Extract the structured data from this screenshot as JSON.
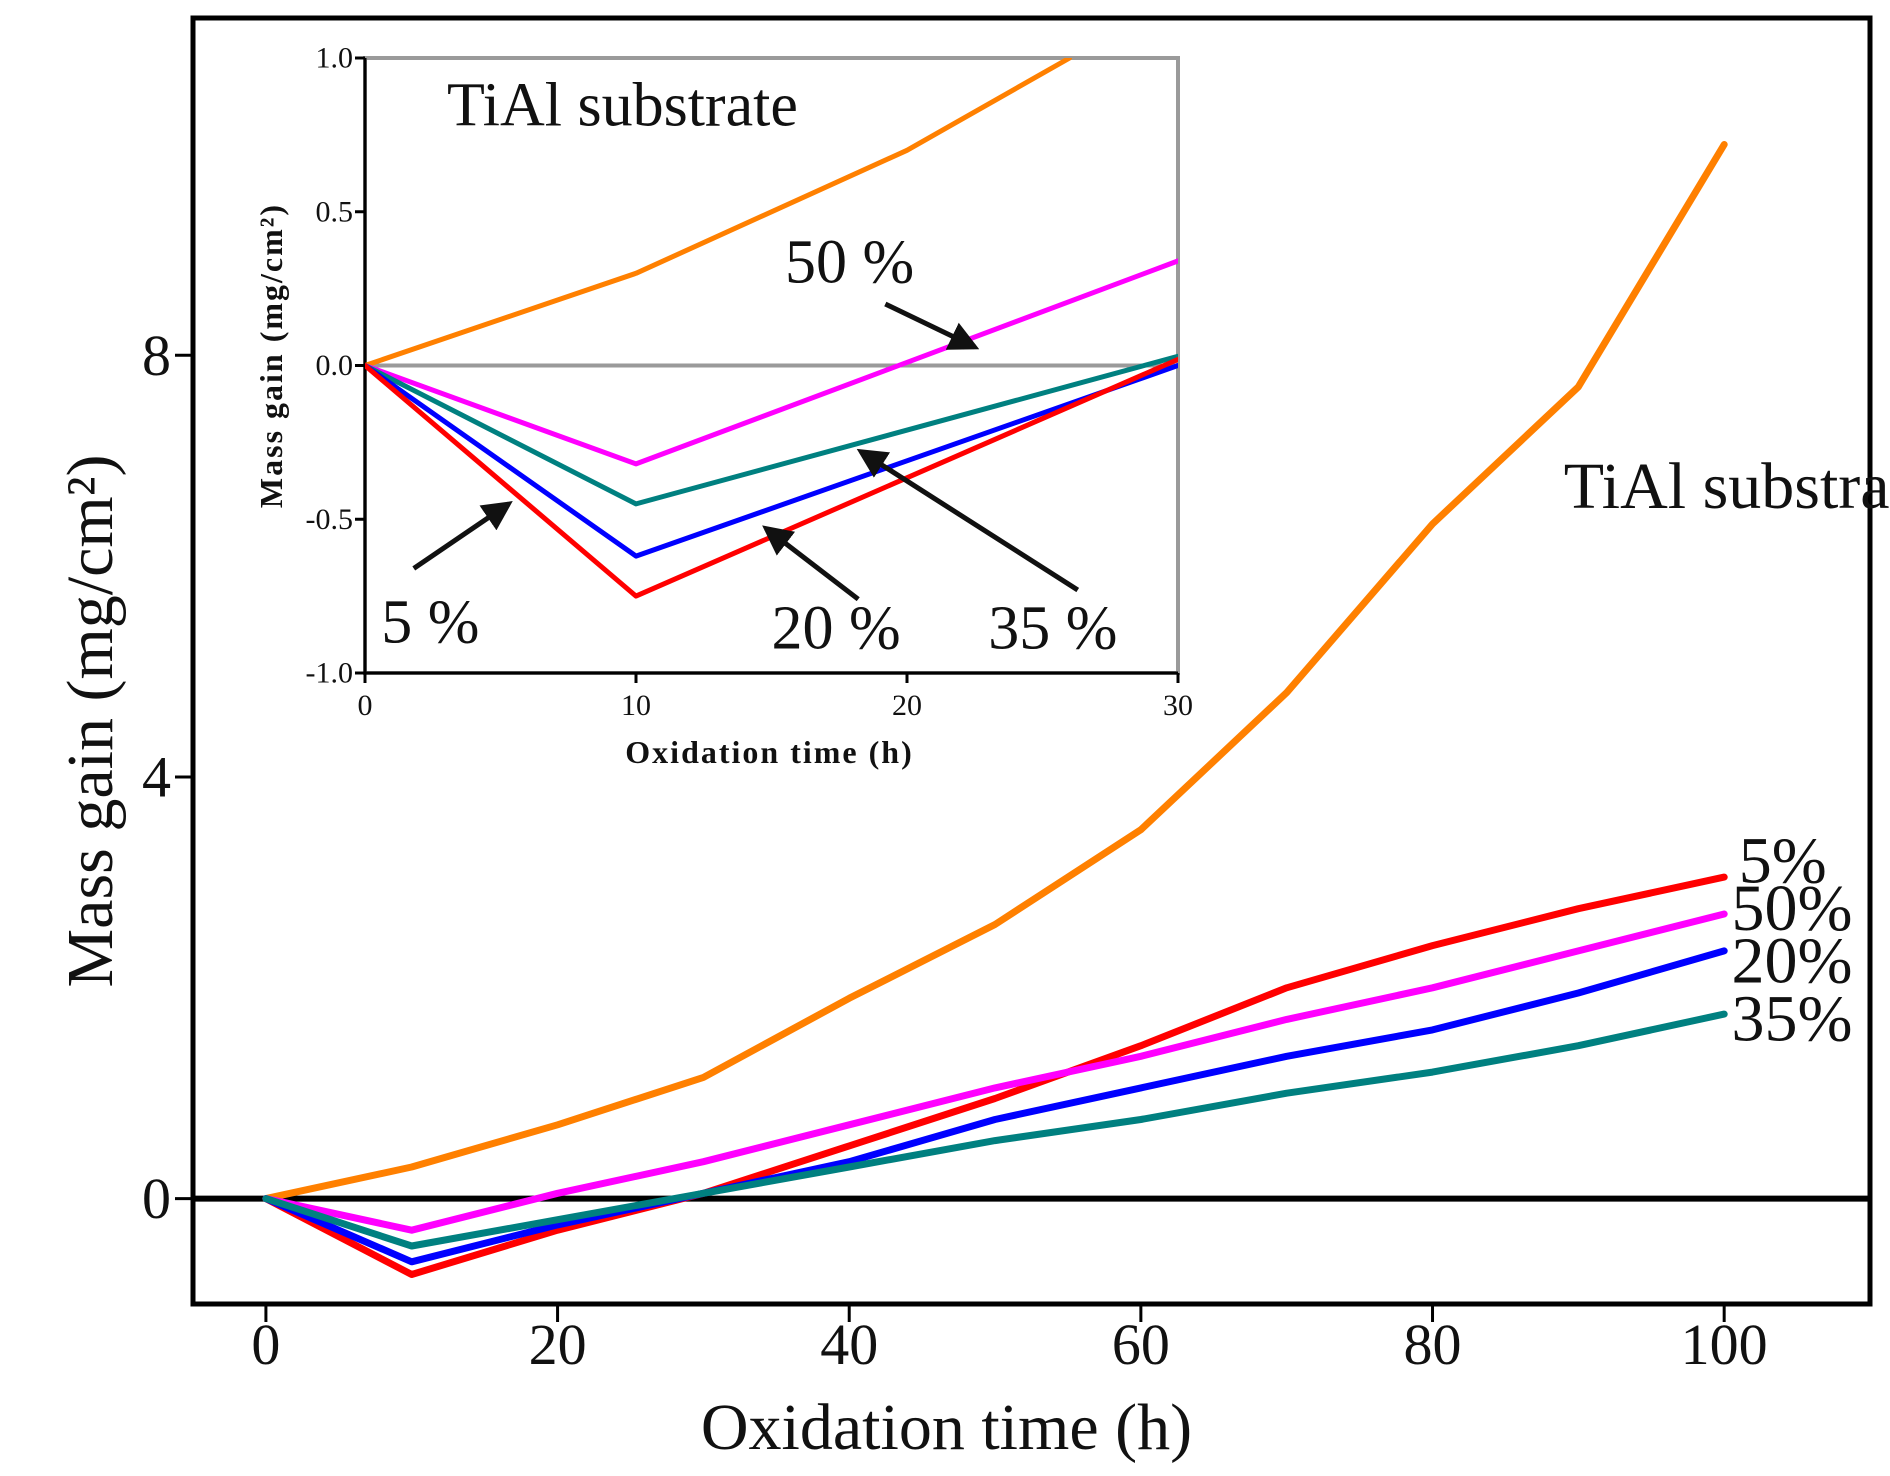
{
  "chart_data": [
    {
      "id": "main",
      "type": "line",
      "title": "",
      "xlabel": "Oxidation time (h)",
      "ylabel": "Mass gain (mg/cm²)",
      "xlim": [
        -5,
        110
      ],
      "ylim": [
        -1,
        11.2
      ],
      "xticks": [
        0,
        20,
        40,
        60,
        80,
        100
      ],
      "yticks": [
        0,
        4,
        8
      ],
      "zero_line": true,
      "series": [
        {
          "name": "TiAl substrate",
          "color": "#ff8000",
          "x": [
            0,
            10,
            20,
            30,
            40,
            50,
            60,
            70,
            80,
            90,
            100
          ],
          "y": [
            0,
            0.3,
            0.7,
            1.15,
            1.9,
            2.6,
            3.5,
            4.8,
            6.4,
            7.7,
            10.0
          ]
        },
        {
          "name": "5%",
          "color": "#ff0000",
          "x": [
            0,
            10,
            20,
            30,
            40,
            50,
            60,
            70,
            80,
            90,
            100
          ],
          "y": [
            0,
            -0.72,
            -0.3,
            0.05,
            0.5,
            0.95,
            1.45,
            2.0,
            2.4,
            2.75,
            3.05
          ]
        },
        {
          "name": "50%",
          "color": "#ff00ff",
          "x": [
            0,
            10,
            20,
            30,
            40,
            50,
            60,
            70,
            80,
            90,
            100
          ],
          "y": [
            0,
            -0.3,
            0.05,
            0.35,
            0.7,
            1.05,
            1.35,
            1.7,
            2.0,
            2.35,
            2.7
          ]
        },
        {
          "name": "20%",
          "color": "#0000ff",
          "x": [
            0,
            10,
            20,
            30,
            40,
            50,
            60,
            70,
            80,
            90,
            100
          ],
          "y": [
            0,
            -0.6,
            -0.25,
            0.05,
            0.35,
            0.75,
            1.05,
            1.35,
            1.6,
            1.95,
            2.35
          ]
        },
        {
          "name": "35%",
          "color": "#008080",
          "x": [
            0,
            10,
            20,
            30,
            40,
            50,
            60,
            70,
            80,
            90,
            100
          ],
          "y": [
            0,
            -0.45,
            -0.2,
            0.05,
            0.3,
            0.55,
            0.75,
            1.0,
            1.2,
            1.45,
            1.75
          ]
        }
      ],
      "annotations": [
        {
          "text": "TiAl substrate",
          "x": 89,
          "y": 6.55
        },
        {
          "text": "5%",
          "x": 101,
          "y": 3.0
        },
        {
          "text": "50%",
          "x": 100.5,
          "y": 2.55
        },
        {
          "text": "20%",
          "x": 100.5,
          "y": 2.05
        },
        {
          "text": "35%",
          "x": 100.5,
          "y": 1.5
        }
      ]
    },
    {
      "id": "inset",
      "type": "line",
      "title": "",
      "xlabel": "Oxidation time (h)",
      "ylabel": "Mass gain (mg/cm²)",
      "xlim": [
        0,
        30
      ],
      "ylim": [
        -1.0,
        1.0
      ],
      "xticks": [
        0,
        10,
        20,
        30
      ],
      "yticks": [
        -1.0,
        -0.5,
        0.0,
        0.5,
        1.0
      ],
      "ytick_labels": [
        "-1.0",
        "-0.5",
        "0.0",
        "0.5",
        "1.0"
      ],
      "zero_line": true,
      "series": [
        {
          "name": "TiAl substrate",
          "color": "#ff8000",
          "x": [
            0,
            10,
            20,
            26
          ],
          "y": [
            0,
            0.3,
            0.7,
            1.0
          ]
        },
        {
          "name": "50 %",
          "color": "#ff00ff",
          "x": [
            0,
            10,
            30
          ],
          "y": [
            0,
            -0.32,
            0.34
          ]
        },
        {
          "name": "35 %",
          "color": "#008080",
          "x": [
            0,
            10,
            30
          ],
          "y": [
            0,
            -0.45,
            0.03
          ]
        },
        {
          "name": "20 %",
          "color": "#0000ff",
          "x": [
            0,
            10,
            30
          ],
          "y": [
            0,
            -0.62,
            0.0
          ]
        },
        {
          "name": "5 %",
          "color": "#ff0000",
          "x": [
            0,
            10,
            30
          ],
          "y": [
            0,
            -0.75,
            0.02
          ]
        }
      ],
      "annotations": [
        {
          "text": "TiAl substrate",
          "x": 9.5,
          "y": 0.78,
          "anchor": "middle"
        },
        {
          "text": "50 %",
          "x": 15.5,
          "y": 0.27,
          "anchor": "start",
          "arrow_from": [
            19.2,
            0.2
          ],
          "arrow_to": [
            22.5,
            0.06
          ]
        },
        {
          "text": "5 %",
          "x": 0.6,
          "y": -0.9,
          "anchor": "start",
          "arrow_from": [
            1.8,
            -0.66
          ],
          "arrow_to": [
            5.3,
            -0.45
          ]
        },
        {
          "text": "20 %",
          "x": 15.0,
          "y": -0.92,
          "anchor": "start",
          "arrow_from": [
            18.2,
            -0.76
          ],
          "arrow_to": [
            14.8,
            -0.53
          ]
        },
        {
          "text": "35 %",
          "x": 23.0,
          "y": -0.92,
          "anchor": "start",
          "arrow_from": [
            26.3,
            -0.73
          ],
          "arrow_to": [
            18.3,
            -0.28
          ]
        }
      ]
    }
  ]
}
